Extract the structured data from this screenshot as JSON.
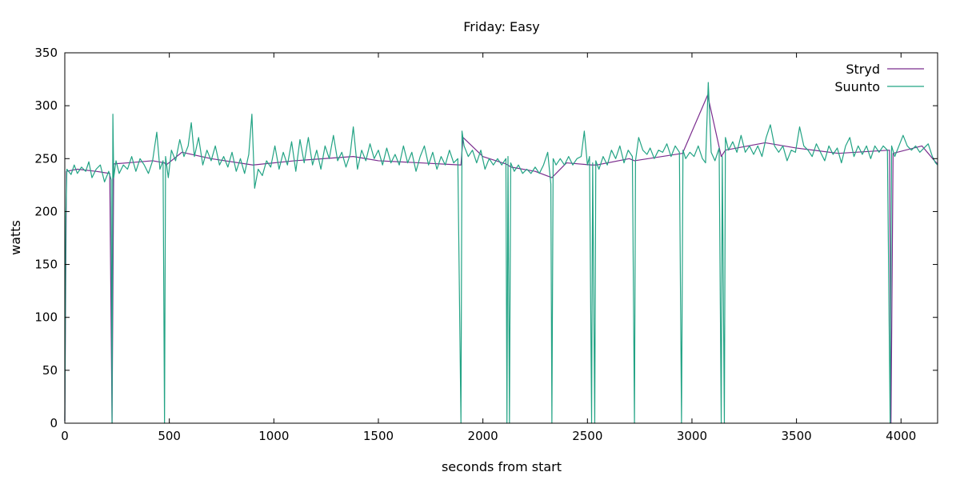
{
  "chart_data": {
    "type": "line",
    "title": "Friday: Easy",
    "xlabel": "seconds from start",
    "ylabel": "watts",
    "xlim": [
      0,
      4175
    ],
    "ylim": [
      0,
      350
    ],
    "xticks": [
      0,
      500,
      1000,
      1500,
      2000,
      2500,
      3000,
      3500,
      4000
    ],
    "yticks": [
      0,
      50,
      100,
      150,
      200,
      250,
      300,
      350
    ],
    "grid": false,
    "legend": "top-right",
    "series": [
      {
        "name": "Stryd",
        "color": "#7b2d8e",
        "points": [
          [
            0,
            2
          ],
          [
            8,
            238
          ],
          [
            60,
            240
          ],
          [
            150,
            238
          ],
          [
            215,
            236
          ],
          [
            226,
            0
          ],
          [
            234,
            245
          ],
          [
            300,
            246
          ],
          [
            420,
            248
          ],
          [
            477,
            246
          ],
          [
            485,
            244
          ],
          [
            560,
            256
          ],
          [
            700,
            250
          ],
          [
            900,
            244
          ],
          [
            1100,
            248
          ],
          [
            1380,
            252
          ],
          [
            1500,
            248
          ],
          [
            1700,
            246
          ],
          [
            1895,
            244
          ],
          [
            1905,
            270
          ],
          [
            2000,
            252
          ],
          [
            2110,
            245
          ],
          [
            2135,
            242
          ],
          [
            2250,
            238
          ],
          [
            2330,
            232
          ],
          [
            2400,
            246
          ],
          [
            2520,
            244
          ],
          [
            2545,
            244
          ],
          [
            2700,
            250
          ],
          [
            2725,
            248
          ],
          [
            2955,
            255
          ],
          [
            3075,
            310
          ],
          [
            3140,
            252
          ],
          [
            3160,
            258
          ],
          [
            3350,
            265
          ],
          [
            3500,
            260
          ],
          [
            3700,
            255
          ],
          [
            3945,
            258
          ],
          [
            3952,
            0
          ],
          [
            3962,
            255
          ],
          [
            4100,
            262
          ],
          [
            4160,
            248
          ],
          [
            4175,
            245
          ]
        ]
      },
      {
        "name": "Suunto",
        "color": "#22a384",
        "points": [
          [
            0,
            2
          ],
          [
            5,
            195
          ],
          [
            10,
            240
          ],
          [
            30,
            235
          ],
          [
            45,
            244
          ],
          [
            60,
            236
          ],
          [
            80,
            242
          ],
          [
            100,
            238
          ],
          [
            115,
            247
          ],
          [
            130,
            232
          ],
          [
            150,
            240
          ],
          [
            170,
            244
          ],
          [
            190,
            228
          ],
          [
            210,
            238
          ],
          [
            222,
            230
          ],
          [
            226,
            0
          ],
          [
            230,
            292
          ],
          [
            234,
            232
          ],
          [
            245,
            248
          ],
          [
            260,
            236
          ],
          [
            280,
            244
          ],
          [
            300,
            240
          ],
          [
            320,
            252
          ],
          [
            340,
            238
          ],
          [
            360,
            250
          ],
          [
            380,
            244
          ],
          [
            400,
            236
          ],
          [
            420,
            248
          ],
          [
            440,
            275
          ],
          [
            455,
            240
          ],
          [
            470,
            248
          ],
          [
            477,
            0
          ],
          [
            482,
            252
          ],
          [
            495,
            232
          ],
          [
            510,
            258
          ],
          [
            530,
            248
          ],
          [
            550,
            268
          ],
          [
            570,
            252
          ],
          [
            590,
            262
          ],
          [
            605,
            284
          ],
          [
            620,
            252
          ],
          [
            640,
            270
          ],
          [
            660,
            244
          ],
          [
            680,
            258
          ],
          [
            700,
            248
          ],
          [
            720,
            262
          ],
          [
            740,
            244
          ],
          [
            760,
            252
          ],
          [
            780,
            242
          ],
          [
            800,
            256
          ],
          [
            820,
            238
          ],
          [
            840,
            250
          ],
          [
            860,
            236
          ],
          [
            880,
            254
          ],
          [
            895,
            292
          ],
          [
            908,
            222
          ],
          [
            925,
            240
          ],
          [
            945,
            234
          ],
          [
            965,
            248
          ],
          [
            985,
            242
          ],
          [
            1005,
            262
          ],
          [
            1025,
            240
          ],
          [
            1045,
            256
          ],
          [
            1065,
            244
          ],
          [
            1085,
            266
          ],
          [
            1105,
            238
          ],
          [
            1125,
            268
          ],
          [
            1145,
            246
          ],
          [
            1165,
            270
          ],
          [
            1185,
            244
          ],
          [
            1205,
            258
          ],
          [
            1225,
            240
          ],
          [
            1245,
            262
          ],
          [
            1265,
            250
          ],
          [
            1285,
            272
          ],
          [
            1305,
            248
          ],
          [
            1325,
            256
          ],
          [
            1345,
            242
          ],
          [
            1365,
            254
          ],
          [
            1380,
            280
          ],
          [
            1400,
            240
          ],
          [
            1420,
            258
          ],
          [
            1440,
            248
          ],
          [
            1460,
            264
          ],
          [
            1480,
            250
          ],
          [
            1500,
            258
          ],
          [
            1520,
            244
          ],
          [
            1540,
            260
          ],
          [
            1560,
            246
          ],
          [
            1580,
            254
          ],
          [
            1600,
            244
          ],
          [
            1620,
            262
          ],
          [
            1640,
            246
          ],
          [
            1660,
            256
          ],
          [
            1680,
            238
          ],
          [
            1700,
            252
          ],
          [
            1720,
            262
          ],
          [
            1740,
            244
          ],
          [
            1760,
            256
          ],
          [
            1780,
            240
          ],
          [
            1800,
            252
          ],
          [
            1820,
            244
          ],
          [
            1840,
            258
          ],
          [
            1860,
            246
          ],
          [
            1880,
            250
          ],
          [
            1895,
            0
          ],
          [
            1900,
            276
          ],
          [
            1910,
            262
          ],
          [
            1930,
            252
          ],
          [
            1950,
            258
          ],
          [
            1970,
            246
          ],
          [
            1990,
            258
          ],
          [
            2010,
            240
          ],
          [
            2030,
            250
          ],
          [
            2050,
            244
          ],
          [
            2070,
            250
          ],
          [
            2090,
            244
          ],
          [
            2110,
            250
          ],
          [
            2115,
            0
          ],
          [
            2120,
            252
          ],
          [
            2127,
            0
          ],
          [
            2133,
            246
          ],
          [
            2150,
            238
          ],
          [
            2170,
            244
          ],
          [
            2190,
            236
          ],
          [
            2210,
            240
          ],
          [
            2230,
            236
          ],
          [
            2250,
            242
          ],
          [
            2270,
            236
          ],
          [
            2290,
            244
          ],
          [
            2310,
            256
          ],
          [
            2325,
            226
          ],
          [
            2330,
            0
          ],
          [
            2336,
            250
          ],
          [
            2350,
            244
          ],
          [
            2370,
            250
          ],
          [
            2390,
            244
          ],
          [
            2410,
            252
          ],
          [
            2430,
            244
          ],
          [
            2450,
            250
          ],
          [
            2470,
            252
          ],
          [
            2485,
            276
          ],
          [
            2500,
            244
          ],
          [
            2510,
            252
          ],
          [
            2520,
            0
          ],
          [
            2525,
            246
          ],
          [
            2535,
            0
          ],
          [
            2540,
            248
          ],
          [
            2555,
            240
          ],
          [
            2575,
            252
          ],
          [
            2595,
            244
          ],
          [
            2615,
            258
          ],
          [
            2635,
            250
          ],
          [
            2655,
            262
          ],
          [
            2675,
            246
          ],
          [
            2695,
            258
          ],
          [
            2715,
            252
          ],
          [
            2725,
            0
          ],
          [
            2730,
            248
          ],
          [
            2745,
            270
          ],
          [
            2765,
            258
          ],
          [
            2785,
            254
          ],
          [
            2800,
            260
          ],
          [
            2820,
            250
          ],
          [
            2840,
            258
          ],
          [
            2860,
            256
          ],
          [
            2880,
            264
          ],
          [
            2900,
            252
          ],
          [
            2920,
            262
          ],
          [
            2940,
            256
          ],
          [
            2950,
            0
          ],
          [
            2957,
            258
          ],
          [
            2970,
            250
          ],
          [
            2990,
            256
          ],
          [
            3010,
            252
          ],
          [
            3030,
            262
          ],
          [
            3050,
            250
          ],
          [
            3065,
            246
          ],
          [
            3078,
            322
          ],
          [
            3092,
            256
          ],
          [
            3110,
            248
          ],
          [
            3130,
            260
          ],
          [
            3140,
            0
          ],
          [
            3145,
            252
          ],
          [
            3155,
            0
          ],
          [
            3160,
            270
          ],
          [
            3175,
            258
          ],
          [
            3195,
            266
          ],
          [
            3215,
            256
          ],
          [
            3235,
            272
          ],
          [
            3255,
            256
          ],
          [
            3275,
            262
          ],
          [
            3295,
            254
          ],
          [
            3315,
            262
          ],
          [
            3335,
            252
          ],
          [
            3355,
            270
          ],
          [
            3375,
            282
          ],
          [
            3395,
            262
          ],
          [
            3415,
            256
          ],
          [
            3435,
            262
          ],
          [
            3455,
            248
          ],
          [
            3475,
            258
          ],
          [
            3495,
            256
          ],
          [
            3515,
            280
          ],
          [
            3535,
            262
          ],
          [
            3555,
            258
          ],
          [
            3575,
            252
          ],
          [
            3595,
            264
          ],
          [
            3615,
            256
          ],
          [
            3635,
            248
          ],
          [
            3655,
            262
          ],
          [
            3675,
            254
          ],
          [
            3695,
            260
          ],
          [
            3715,
            246
          ],
          [
            3735,
            262
          ],
          [
            3755,
            270
          ],
          [
            3775,
            252
          ],
          [
            3795,
            262
          ],
          [
            3815,
            254
          ],
          [
            3835,
            262
          ],
          [
            3855,
            250
          ],
          [
            3875,
            262
          ],
          [
            3895,
            256
          ],
          [
            3915,
            262
          ],
          [
            3935,
            258
          ],
          [
            3948,
            0
          ],
          [
            3955,
            262
          ],
          [
            3970,
            252
          ],
          [
            3990,
            262
          ],
          [
            4010,
            272
          ],
          [
            4030,
            262
          ],
          [
            4050,
            258
          ],
          [
            4070,
            262
          ],
          [
            4090,
            256
          ],
          [
            4110,
            260
          ],
          [
            4130,
            264
          ],
          [
            4150,
            252
          ],
          [
            4165,
            246
          ],
          [
            4175,
            244
          ]
        ]
      }
    ]
  }
}
